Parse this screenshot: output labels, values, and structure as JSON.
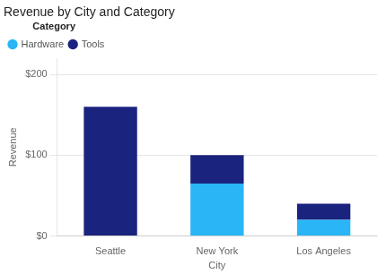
{
  "chart_data": {
    "type": "bar",
    "stacked": true,
    "title": "Revenue by City and Category",
    "xlabel": "City",
    "ylabel": "Revenue",
    "categories": [
      "Seattle",
      "New York",
      "Los Angeles"
    ],
    "series": [
      {
        "name": "Hardware",
        "color": "#29b5f6",
        "values": [
          0,
          65,
          20
        ]
      },
      {
        "name": "Tools",
        "color": "#1a237e",
        "values": [
          160,
          35,
          20
        ]
      }
    ],
    "legend_title": "Category",
    "legend": "upper left",
    "ylim": [
      0,
      220
    ],
    "yticks": [
      {
        "value": 0,
        "label": "$0"
      },
      {
        "value": 100,
        "label": "$100"
      },
      {
        "value": 200,
        "label": "$200"
      }
    ],
    "grid": true
  }
}
